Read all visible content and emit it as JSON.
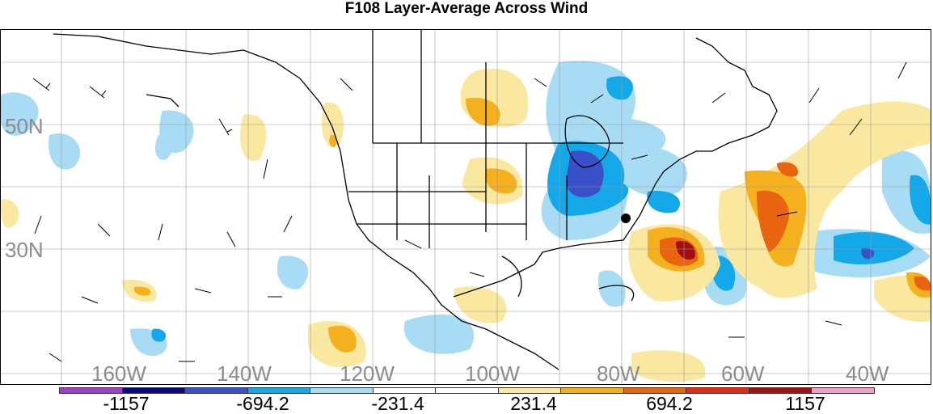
{
  "title": "F108 Layer-Average Across Wind",
  "map": {
    "lat_labels": [
      "50N",
      "30N"
    ],
    "lon_labels": [
      "160W",
      "140W",
      "120W",
      "100W",
      "80W",
      "60W",
      "40W"
    ],
    "shading_colors_low_to_high": [
      "#a040c8",
      "#0a0a80",
      "#3a50c8",
      "#14a8e8",
      "#a8dcf5",
      "#ffffff",
      "#ffffff",
      "#fae8a0",
      "#f5b020",
      "#e86410",
      "#e82810",
      "#a01010",
      "#f0a0c0"
    ]
  },
  "colorbar": {
    "labels": [
      "-1157",
      "-694.2",
      "-231.4",
      "231.4",
      "694.2",
      "1157"
    ],
    "colors": [
      "#a040c8",
      "#0a0a80",
      "#3a50c8",
      "#14a8e8",
      "#a8dcf5",
      "#ffffff",
      "#ffffff",
      "#fae8a0",
      "#f5b020",
      "#e86410",
      "#e82810",
      "#a01010",
      "#f0a0c0"
    ]
  }
}
